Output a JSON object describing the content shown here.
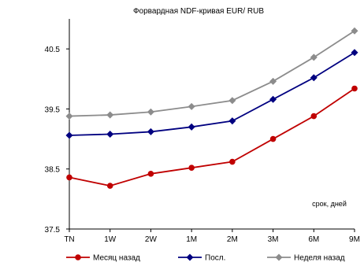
{
  "chart_data": {
    "type": "line",
    "title": "Форвардная NDF-кривая EUR/ RUB",
    "annotation": "срок, дней",
    "categories": [
      "TN",
      "1W",
      "2W",
      "1M",
      "2M",
      "3M",
      "6M",
      "9M"
    ],
    "y_ticks": [
      "37.5",
      "38.5",
      "39.5",
      "40.5"
    ],
    "ylim": [
      37.5,
      41.0
    ],
    "grid": false,
    "legend_position": "bottom",
    "series": [
      {
        "name": "Месяц назад",
        "color": "#c00000",
        "marker": "circle",
        "values": [
          38.36,
          38.22,
          38.42,
          38.52,
          38.62,
          39.0,
          39.38,
          39.84
        ]
      },
      {
        "name": "Посл.",
        "color": "#000080",
        "marker": "diamond",
        "values": [
          39.06,
          39.08,
          39.12,
          39.2,
          39.3,
          39.66,
          40.02,
          40.44
        ]
      },
      {
        "name": "Неделя назад",
        "color": "#8c8c8c",
        "marker": "diamond",
        "values": [
          39.38,
          39.4,
          39.45,
          39.54,
          39.64,
          39.96,
          40.36,
          40.8
        ]
      }
    ]
  }
}
